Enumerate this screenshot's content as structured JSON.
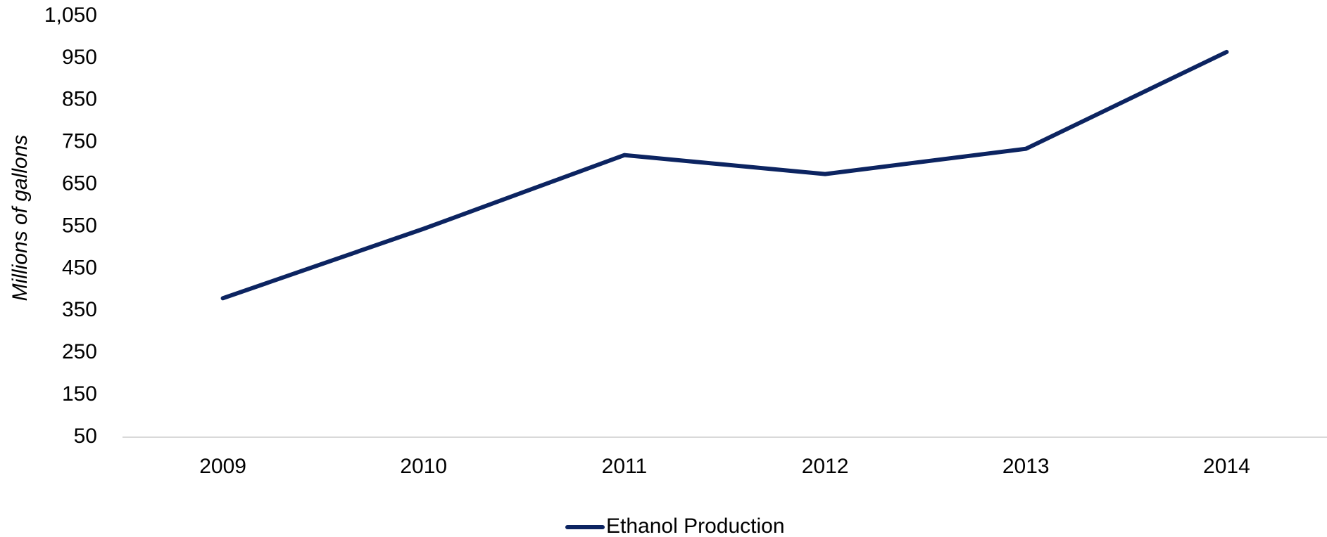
{
  "chart_data": {
    "type": "line",
    "y_axis_label": "Millions of gallons",
    "categories": [
      "2009",
      "2010",
      "2011",
      "2012",
      "2013",
      "2014"
    ],
    "series": [
      {
        "name": "Ethanol Production",
        "color": "#0c2461",
        "values": [
          380,
          545,
          720,
          675,
          735,
          965
        ]
      }
    ],
    "ylim": [
      50,
      1050
    ],
    "yticks": [
      50,
      150,
      250,
      350,
      450,
      550,
      650,
      750,
      850,
      950,
      {
        "value": 1050,
        "label": "1,050"
      }
    ],
    "grid": false,
    "legend": "bottom"
  }
}
